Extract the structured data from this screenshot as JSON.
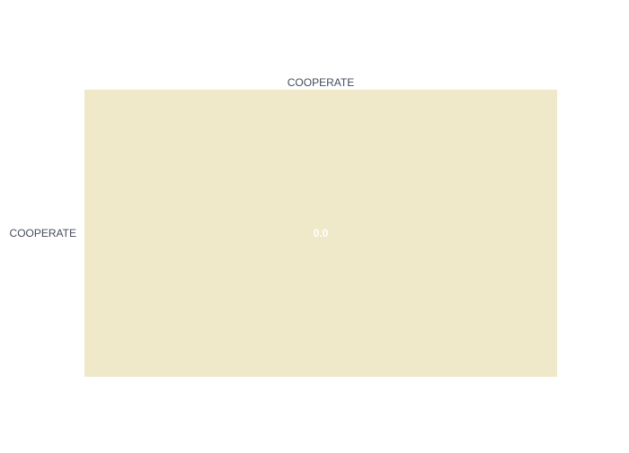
{
  "chart_data": {
    "type": "heatmap",
    "x_categories": [
      "COOPERATE"
    ],
    "y_categories": [
      "COOPERATE"
    ],
    "z": [
      [
        0.0
      ]
    ],
    "cell_labels": [
      [
        "0.0"
      ]
    ],
    "title": "",
    "xlabel": "",
    "ylabel": "",
    "x_axis_side": "top",
    "grid": false,
    "legend": "none",
    "colors": {
      "cell": "#efe8c9",
      "cell_label": "#ffffff",
      "tick_label": "#444c5e",
      "background": "#ffffff"
    }
  }
}
